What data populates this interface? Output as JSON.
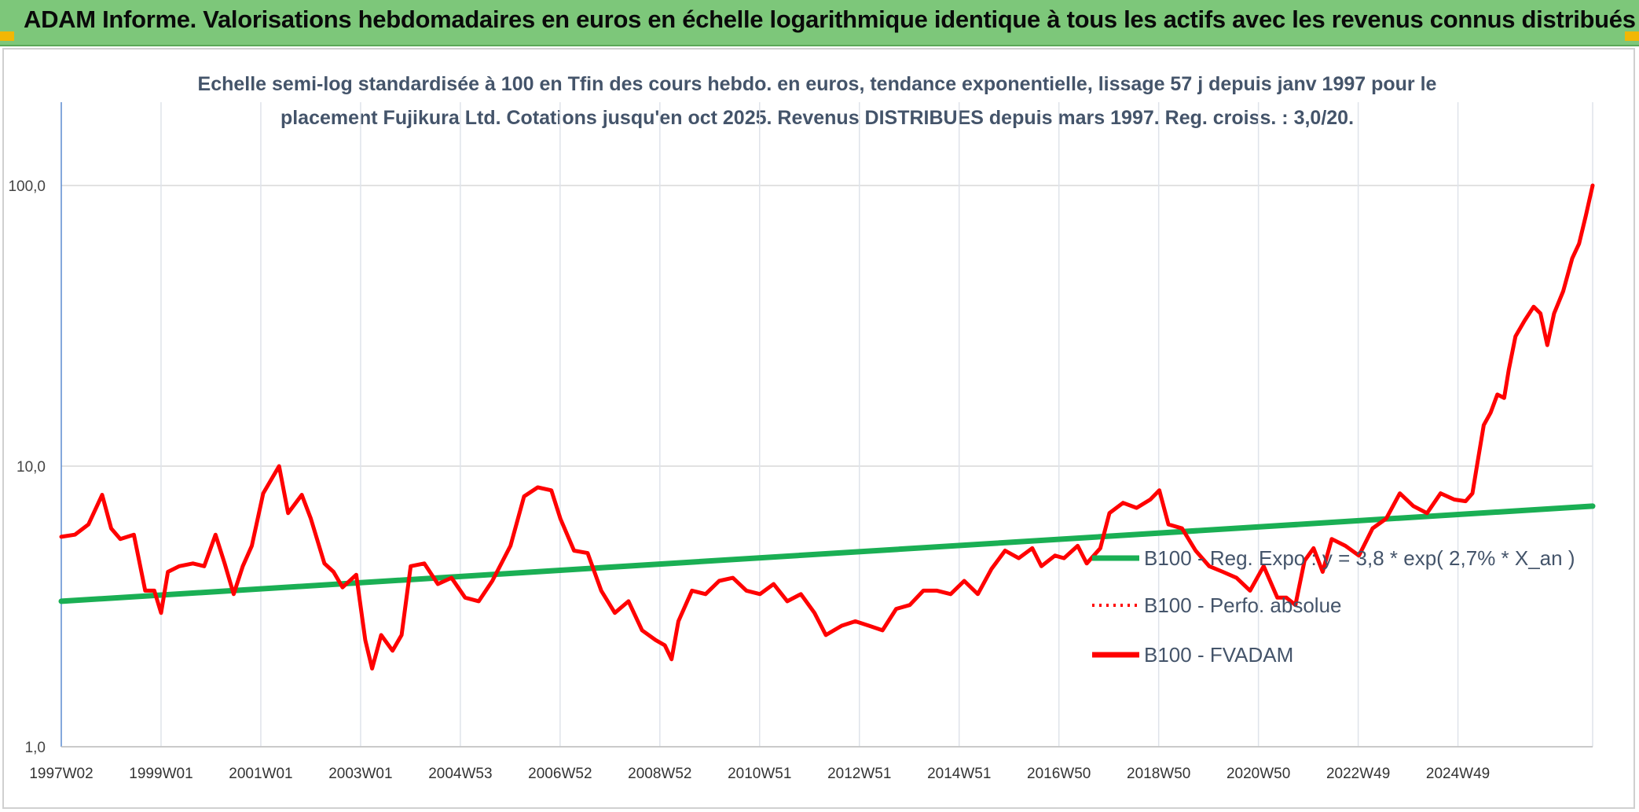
{
  "header": {
    "title": "ADAM Informe. Valorisations hebdomadaires en euros en échelle logarithmique identique à tous les actifs avec les revenus connus distribués"
  },
  "colors": {
    "banner": "#7dc77a",
    "fvadam": "#ff0000",
    "regression": "#1aaf54",
    "perfo": "#ff0000",
    "title_text": "#44546a"
  },
  "chart_data": {
    "type": "line",
    "title": "Echelle semi-log standardisée à 100 en Tfin des cours hebdo. en euros, tendance exponentielle, lissage 57 j depuis janv 1997 pour le placement Fujikura Ltd. Cotations jusqu'en oct 2025. Revenus DISTRIBUES depuis mars 1997. Reg. croiss. : 3,0/20.",
    "y_scale": "log",
    "ylim": [
      1,
      100
    ],
    "y_ticks": [
      "1,0",
      "10,0",
      "100,0"
    ],
    "x_range_years": [
      1997.0,
      2025.8
    ],
    "x_ticks": [
      "1997W02",
      "1999W01",
      "2001W01",
      "2003W01",
      "2004W53",
      "2006W52",
      "2008W52",
      "2010W51",
      "2012W51",
      "2014W51",
      "2016W50",
      "2018W50",
      "2020W50",
      "2022W49",
      "2024W49"
    ],
    "legend": [
      "B100 - Reg. Expo : y = 3,8 * exp( 2,7% * X_an )",
      "B100 - Perfo. absolue",
      "B100 - FVADAM"
    ],
    "legend_placement": "right",
    "grid": true,
    "series": [
      {
        "name": "B100 - FVADAM",
        "style": "solid",
        "points": [
          [
            1997.0,
            5.6
          ],
          [
            1997.3,
            5.7
          ],
          [
            1997.6,
            6.2
          ],
          [
            1997.9,
            7.9
          ],
          [
            1998.1,
            6.0
          ],
          [
            1998.3,
            5.5
          ],
          [
            1998.6,
            5.7
          ],
          [
            1998.85,
            3.6
          ],
          [
            1999.05,
            3.6
          ],
          [
            1999.2,
            3.0
          ],
          [
            1999.35,
            4.2
          ],
          [
            1999.6,
            4.4
          ],
          [
            1999.9,
            4.5
          ],
          [
            2000.15,
            4.4
          ],
          [
            2000.4,
            5.7
          ],
          [
            2000.6,
            4.5
          ],
          [
            2000.8,
            3.5
          ],
          [
            2001.0,
            4.4
          ],
          [
            2001.2,
            5.2
          ],
          [
            2001.45,
            8.0
          ],
          [
            2001.8,
            10.0
          ],
          [
            2002.0,
            6.8
          ],
          [
            2002.3,
            7.9
          ],
          [
            2002.5,
            6.5
          ],
          [
            2002.8,
            4.5
          ],
          [
            2003.0,
            4.2
          ],
          [
            2003.2,
            3.7
          ],
          [
            2003.5,
            4.1
          ],
          [
            2003.7,
            2.4
          ],
          [
            2003.85,
            1.9
          ],
          [
            2004.05,
            2.5
          ],
          [
            2004.3,
            2.2
          ],
          [
            2004.5,
            2.5
          ],
          [
            2004.7,
            4.4
          ],
          [
            2005.0,
            4.5
          ],
          [
            2005.3,
            3.8
          ],
          [
            2005.6,
            4.0
          ],
          [
            2005.9,
            3.4
          ],
          [
            2006.2,
            3.3
          ],
          [
            2006.5,
            3.9
          ],
          [
            2006.9,
            5.2
          ],
          [
            2007.2,
            7.8
          ],
          [
            2007.5,
            8.4
          ],
          [
            2007.8,
            8.2
          ],
          [
            2008.0,
            6.5
          ],
          [
            2008.3,
            5.0
          ],
          [
            2008.6,
            4.9
          ],
          [
            2008.9,
            3.6
          ],
          [
            2009.2,
            3.0
          ],
          [
            2009.5,
            3.3
          ],
          [
            2009.8,
            2.6
          ],
          [
            2010.1,
            2.4
          ],
          [
            2010.3,
            2.3
          ],
          [
            2010.45,
            2.05
          ],
          [
            2010.6,
            2.8
          ],
          [
            2010.9,
            3.6
          ],
          [
            2011.2,
            3.5
          ],
          [
            2011.5,
            3.9
          ],
          [
            2011.8,
            4.0
          ],
          [
            2012.1,
            3.6
          ],
          [
            2012.4,
            3.5
          ],
          [
            2012.7,
            3.8
          ],
          [
            2013.0,
            3.3
          ],
          [
            2013.3,
            3.5
          ],
          [
            2013.6,
            3.0
          ],
          [
            2013.85,
            2.5
          ],
          [
            2014.2,
            2.7
          ],
          [
            2014.5,
            2.8
          ],
          [
            2014.8,
            2.7
          ],
          [
            2015.1,
            2.6
          ],
          [
            2015.4,
            3.1
          ],
          [
            2015.7,
            3.2
          ],
          [
            2016.0,
            3.6
          ],
          [
            2016.3,
            3.6
          ],
          [
            2016.6,
            3.5
          ],
          [
            2016.9,
            3.9
          ],
          [
            2017.2,
            3.5
          ],
          [
            2017.5,
            4.3
          ],
          [
            2017.8,
            5.0
          ],
          [
            2018.1,
            4.7
          ],
          [
            2018.4,
            5.1
          ],
          [
            2018.6,
            4.4
          ],
          [
            2018.9,
            4.8
          ],
          [
            2019.1,
            4.7
          ],
          [
            2019.4,
            5.2
          ],
          [
            2019.6,
            4.5
          ],
          [
            2019.9,
            5.1
          ],
          [
            2020.1,
            6.8
          ],
          [
            2020.4,
            7.4
          ],
          [
            2020.7,
            7.1
          ],
          [
            2021.0,
            7.6
          ],
          [
            2021.2,
            8.2
          ],
          [
            2021.4,
            6.2
          ],
          [
            2021.7,
            6.0
          ],
          [
            2022.0,
            5.0
          ],
          [
            2022.3,
            4.4
          ],
          [
            2022.6,
            4.2
          ],
          [
            2022.9,
            4.0
          ],
          [
            2023.2,
            3.6
          ],
          [
            2023.5,
            4.4
          ],
          [
            2023.8,
            3.4
          ],
          [
            2024.0,
            3.4
          ],
          [
            2024.2,
            3.2
          ],
          [
            2024.4,
            4.6
          ],
          [
            2024.6,
            5.1
          ],
          [
            2024.8,
            4.2
          ],
          [
            2025.0,
            5.5
          ],
          [
            2025.3,
            5.2
          ],
          [
            2025.6,
            4.8
          ],
          [
            2025.9,
            6.0
          ],
          [
            2026.2,
            6.5
          ],
          [
            2026.5,
            8.0
          ],
          [
            2026.8,
            7.2
          ],
          [
            2027.1,
            6.8
          ],
          [
            2027.4,
            8.0
          ],
          [
            2027.7,
            7.6
          ],
          [
            2027.95,
            7.5
          ],
          [
            2028.1,
            8.0
          ],
          [
            2028.2,
            10.0
          ],
          [
            2028.35,
            14.0
          ],
          [
            2028.5,
            15.5
          ],
          [
            2028.65,
            18.0
          ],
          [
            2028.8,
            17.5
          ],
          [
            2028.9,
            22.0
          ],
          [
            2029.05,
            29.0
          ],
          [
            2029.25,
            33.0
          ],
          [
            2029.45,
            37.0
          ],
          [
            2029.6,
            35.0
          ],
          [
            2029.75,
            27.0
          ],
          [
            2029.9,
            35.0
          ],
          [
            2030.1,
            42.0
          ],
          [
            2030.3,
            55.0
          ],
          [
            2030.45,
            62.0
          ],
          [
            2030.6,
            78.0
          ],
          [
            2030.75,
            100.0
          ]
        ]
      },
      {
        "name": "B100 - Reg. Expo : y = 3,8 * exp( 2,7% * X_an )",
        "style": "regression",
        "points": [
          [
            1997.0,
            3.3
          ],
          [
            2030.75,
            7.2
          ]
        ]
      }
    ]
  }
}
